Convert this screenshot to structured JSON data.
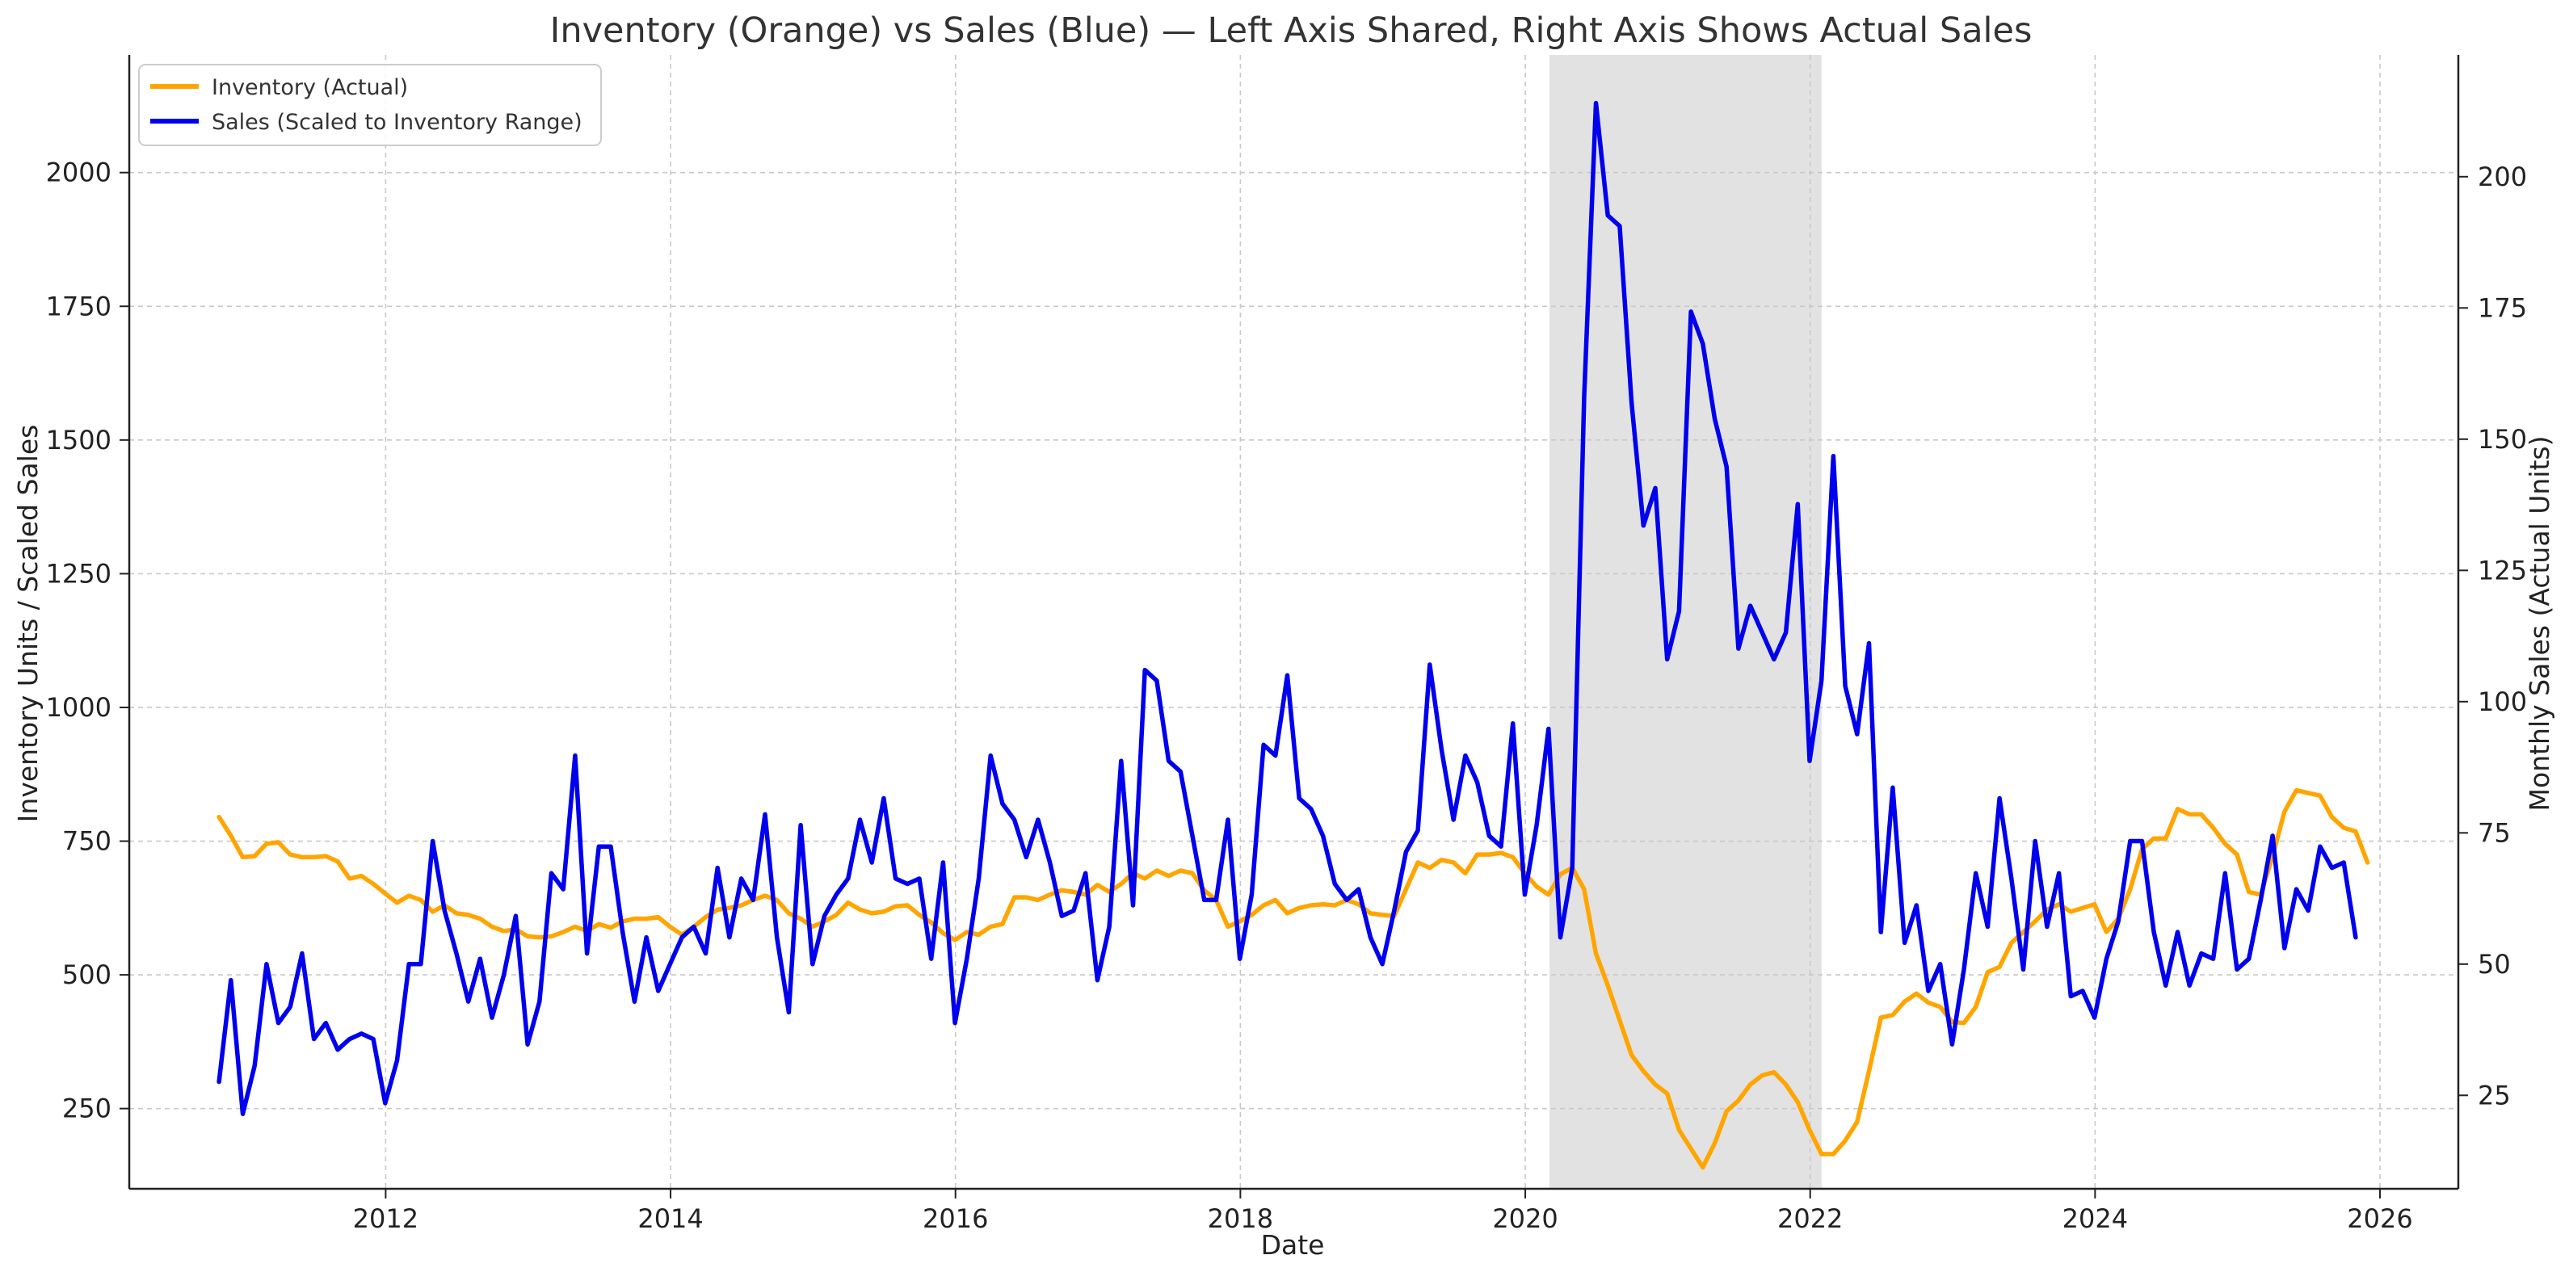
{
  "chart_data": {
    "type": "line",
    "title": "Inventory (Orange) vs Sales (Blue) — Left Axis Shared, Right Axis Shows Actual Sales",
    "xlabel": "Date",
    "ylabel": "Inventory Units / Scaled Sales",
    "y2label": "Monthly Sales (Actual Units)",
    "xlim": [
      2010.2,
      2026.55
    ],
    "ylim": [
      100,
      2220
    ],
    "y2lim": [
      7.2,
      223.2
    ],
    "x_ticks": [
      2012,
      2014,
      2016,
      2018,
      2020,
      2022,
      2024,
      2026
    ],
    "x_tick_labels": [
      "2012",
      "2014",
      "2016",
      "2018",
      "2020",
      "2022",
      "2024",
      "2026"
    ],
    "y_ticks": [
      250,
      500,
      750,
      1000,
      1250,
      1500,
      1750,
      2000
    ],
    "y_tick_labels": [
      "250",
      "500",
      "750",
      "1000",
      "1250",
      "1500",
      "1750",
      "2000"
    ],
    "y2_ticks": [
      25,
      50,
      75,
      100,
      125,
      150,
      175,
      200
    ],
    "y2_tick_labels": [
      "25",
      "50",
      "75",
      "100",
      "125",
      "150",
      "175",
      "200"
    ],
    "grid": true,
    "legend_position": "top-left",
    "shaded_region": {
      "x_start": 2020.17,
      "x_end": 2022.08,
      "color": "#d8d8d8"
    },
    "x_start": 2010.83,
    "x_step": 0.08333,
    "series": [
      {
        "name": "Inventory (Actual)",
        "color": "#ffa500",
        "values": [
          795,
          760,
          720,
          722,
          745,
          748,
          725,
          720,
          720,
          722,
          712,
          680,
          685,
          670,
          652,
          635,
          648,
          640,
          618,
          630,
          615,
          612,
          605,
          590,
          582,
          585,
          572,
          570,
          572,
          580,
          590,
          582,
          595,
          588,
          600,
          605,
          605,
          608,
          590,
          575,
          590,
          608,
          622,
          625,
          630,
          640,
          648,
          640,
          615,
          605,
          590,
          600,
          612,
          635,
          622,
          615,
          618,
          628,
          630,
          612,
          598,
          578,
          565,
          580,
          575,
          590,
          595,
          645,
          645,
          640,
          650,
          658,
          655,
          650,
          668,
          655,
          670,
          690,
          680,
          695,
          685,
          695,
          690,
          658,
          640,
          590,
          600,
          612,
          630,
          640,
          615,
          625,
          630,
          632,
          630,
          640,
          632,
          615,
          612,
          610,
          660,
          710,
          700,
          715,
          710,
          690,
          725,
          725,
          728,
          720,
          690,
          665,
          650,
          688,
          700,
          660,
          540,
          480,
          415,
          350,
          320,
          295,
          278,
          210,
          175,
          140,
          185,
          245,
          265,
          295,
          312,
          318,
          295,
          262,
          210,
          165,
          165,
          190,
          225,
          320,
          420,
          425,
          450,
          465,
          448,
          440,
          412,
          410,
          440,
          505,
          515,
          560,
          580,
          600,
          622,
          632,
          618,
          625,
          632,
          580,
          605,
          660,
          735,
          755,
          755,
          810,
          800,
          800,
          775,
          745,
          725,
          655,
          650,
          722,
          805,
          845,
          840,
          835,
          795,
          775,
          768,
          710
        ]
      },
      {
        "name": "Sales (Scaled to Inventory Range)",
        "color": "#0000ee",
        "values": [
          300,
          490,
          240,
          330,
          520,
          410,
          440,
          540,
          380,
          410,
          360,
          380,
          390,
          380,
          260,
          340,
          520,
          520,
          750,
          620,
          540,
          450,
          530,
          420,
          500,
          610,
          370,
          450,
          690,
          660,
          910,
          540,
          740,
          740,
          580,
          450,
          570,
          470,
          520,
          570,
          590,
          540,
          700,
          570,
          680,
          640,
          800,
          570,
          430,
          780,
          520,
          610,
          650,
          680,
          790,
          710,
          830,
          680,
          670,
          680,
          530,
          710,
          410,
          530,
          680,
          910,
          820,
          790,
          720,
          790,
          710,
          610,
          620,
          690,
          490,
          590,
          900,
          630,
          1070,
          1050,
          900,
          880,
          760,
          640,
          640,
          790,
          530,
          650,
          930,
          910,
          1060,
          830,
          810,
          760,
          670,
          640,
          660,
          570,
          520,
          620,
          730,
          770,
          1080,
          920,
          790,
          910,
          860,
          760,
          740,
          970,
          650,
          780,
          960,
          570,
          700,
          1580,
          2130,
          1920,
          1900,
          1570,
          1340,
          1410,
          1090,
          1180,
          1740,
          1680,
          1540,
          1450,
          1110,
          1190,
          1140,
          1090,
          1140,
          1380,
          900,
          1050,
          1470,
          1040,
          950,
          1120,
          580,
          850,
          560,
          630,
          470,
          520,
          370,
          510,
          690,
          590,
          830,
          680,
          510,
          750,
          590,
          690,
          460,
          470,
          420,
          530,
          600,
          750,
          750,
          580,
          480,
          580,
          480,
          540,
          530,
          690,
          510,
          530,
          640,
          760,
          550,
          660,
          620,
          740,
          700,
          710,
          570
        ]
      }
    ]
  }
}
